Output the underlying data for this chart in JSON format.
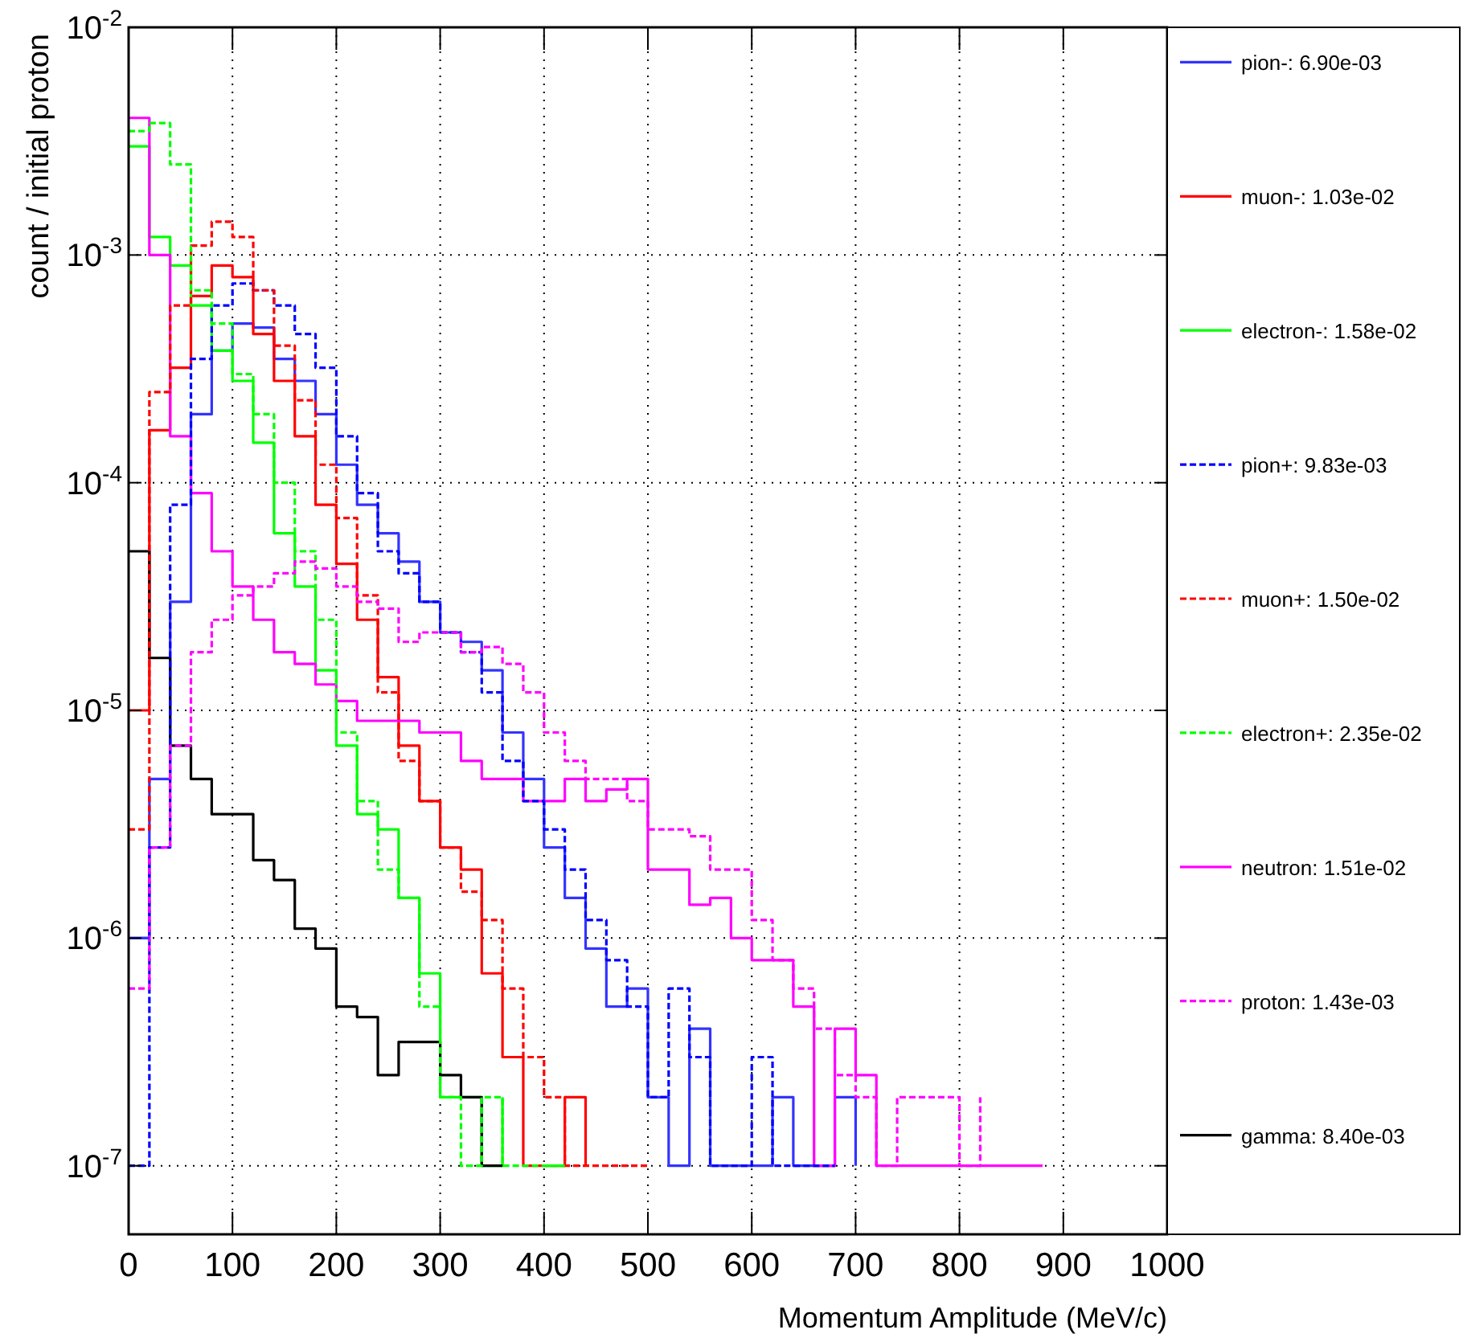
{
  "chart_data": {
    "type": "step",
    "xlabel": "Momentum Amplitude (MeV/c)",
    "ylabel": "count / initial proton",
    "x": [
      0,
      20,
      40,
      60,
      80,
      100,
      120,
      140,
      160,
      180,
      200,
      220,
      240,
      260,
      280,
      300,
      320,
      340,
      360,
      380,
      400,
      420,
      440,
      460,
      480,
      500,
      520,
      540,
      560,
      580,
      600,
      620,
      640,
      660,
      680,
      700,
      720,
      740,
      760,
      780,
      800,
      820,
      840,
      860,
      880
    ],
    "xlim": [
      0,
      1000
    ],
    "xticks": [
      0,
      100,
      200,
      300,
      400,
      500,
      600,
      700,
      800,
      900,
      1000
    ],
    "ylim": [
      5e-08,
      0.01
    ],
    "log": true,
    "yticks": [
      {
        "value": 1e-07,
        "label": "10$^{-7}$"
      },
      {
        "value": 1e-06,
        "label": "10$^{-6}$"
      },
      {
        "value": 1e-05,
        "label": "10$^{-5}$"
      },
      {
        "value": 0.0001,
        "label": "10$^{-4}$"
      },
      {
        "value": 0.001,
        "label": "10$^{-3}$"
      },
      {
        "value": 0.01,
        "label": "10$^{-2}$"
      }
    ],
    "grid": true,
    "legend": "right",
    "series": [
      {
        "name": "pion-: 6.90e-03",
        "color": "#3333ff",
        "line_style": "solid",
        "values": [
          1e-06,
          5e-06,
          3e-05,
          0.0002,
          0.00038,
          0.0005,
          0.00048,
          0.00035,
          0.00028,
          0.0002,
          0.00012,
          8e-05,
          6e-05,
          4.5e-05,
          3e-05,
          2.2e-05,
          2e-05,
          1.5e-05,
          8e-06,
          5e-06,
          2.5e-06,
          1.5e-06,
          9e-07,
          5e-07,
          6e-07,
          2e-07,
          1e-07,
          4e-07,
          1e-07,
          1e-07,
          1e-07,
          2e-07,
          1e-07,
          1e-07,
          2e-07,
          1e-07,
          null,
          null,
          null,
          null,
          null,
          null,
          null,
          null,
          null
        ]
      },
      {
        "name": "muon-: 1.03e-02",
        "color": "#ff0000",
        "line_style": "solid",
        "values": [
          1e-05,
          0.00017,
          0.00032,
          0.00066,
          0.0009,
          0.0008,
          0.00045,
          0.00028,
          0.00016,
          8e-05,
          4.4e-05,
          2.5e-05,
          1.4e-05,
          7e-06,
          4e-06,
          2.5e-06,
          2e-06,
          7e-07,
          3e-07,
          1e-07,
          1e-07,
          2e-07,
          1e-07,
          null,
          null,
          null,
          null,
          null,
          null,
          null,
          null,
          null,
          null,
          null,
          null,
          null,
          null,
          null,
          null,
          null,
          null,
          null,
          null,
          null,
          null
        ]
      },
      {
        "name": "electron-: 1.58e-02",
        "color": "#00ff00",
        "line_style": "solid",
        "values": [
          0.003,
          0.0012,
          0.0009,
          0.0006,
          0.00038,
          0.00028,
          0.00015,
          6e-05,
          3.5e-05,
          1.5e-05,
          7e-06,
          3.5e-06,
          3e-06,
          1.5e-06,
          7e-07,
          2e-07,
          2e-07,
          1e-07,
          2e-07,
          null,
          1e-07,
          1e-07,
          null,
          null,
          null,
          null,
          null,
          null,
          null,
          null,
          null,
          null,
          null,
          null,
          null,
          null,
          null,
          null,
          null,
          null,
          null,
          null,
          null,
          null,
          null
        ]
      },
      {
        "name": "pion+: 9.83e-03",
        "color": "#0000ff",
        "line_style": "dashed",
        "values": [
          1e-07,
          2.5e-06,
          8e-05,
          0.00035,
          0.0006,
          0.00075,
          0.0007,
          0.0006,
          0.00045,
          0.00032,
          0.00016,
          9e-05,
          5e-05,
          4e-05,
          3e-05,
          2.2e-05,
          1.8e-05,
          1.2e-05,
          6e-06,
          4e-06,
          3e-06,
          2e-06,
          1.2e-06,
          8e-07,
          5e-07,
          2e-07,
          6e-07,
          3e-07,
          1e-07,
          1e-07,
          3e-07,
          1e-07,
          1e-07,
          1e-07,
          1e-07,
          null,
          null,
          null,
          null,
          null,
          null,
          null,
          null,
          null,
          null
        ]
      },
      {
        "name": "muon+: 1.50e-02",
        "color": "#ff0000",
        "line_style": "dashed",
        "values": [
          3e-06,
          0.00025,
          0.0006,
          0.0011,
          0.0014,
          0.0012,
          0.0007,
          0.0004,
          0.00023,
          0.00012,
          7e-05,
          3.2e-05,
          1.2e-05,
          6e-06,
          4e-06,
          2.5e-06,
          1.6e-06,
          1.2e-06,
          6e-07,
          3e-07,
          2e-07,
          1e-07,
          1e-07,
          1e-07,
          1e-07,
          1e-07,
          null,
          null,
          null,
          null,
          null,
          null,
          null,
          null,
          null,
          null,
          null,
          null,
          null,
          null,
          null,
          null,
          null,
          null,
          null
        ]
      },
      {
        "name": "electron+: 2.35e-02",
        "color": "#00ff00",
        "line_style": "dashed",
        "values": [
          0.0035,
          0.0038,
          0.0025,
          0.0007,
          0.0005,
          0.0003,
          0.0002,
          0.0001,
          5e-05,
          2.5e-05,
          8e-06,
          4e-06,
          2e-06,
          1.5e-06,
          5e-07,
          2e-07,
          1e-07,
          2e-07,
          1e-07,
          1e-07,
          1e-07,
          1e-07,
          null,
          null,
          null,
          null,
          null,
          null,
          null,
          null,
          null,
          null,
          null,
          null,
          null,
          null,
          null,
          null,
          null,
          null,
          null,
          null,
          null,
          null,
          null
        ]
      },
      {
        "name": "neutron: 1.51e-02",
        "color": "#ff00ff",
        "line_style": "solid",
        "values": [
          0.004,
          0.001,
          0.00016,
          9e-05,
          5e-05,
          3.5e-05,
          2.5e-05,
          1.8e-05,
          1.6e-05,
          1.3e-05,
          1.1e-05,
          9e-06,
          9e-06,
          9e-06,
          8e-06,
          8e-06,
          6e-06,
          5e-06,
          5e-06,
          4e-06,
          4e-06,
          5e-06,
          4e-06,
          4.5e-06,
          5e-06,
          2e-06,
          2e-06,
          1.4e-06,
          1.5e-06,
          1e-06,
          8e-07,
          8e-07,
          5e-07,
          1e-07,
          4e-07,
          2.5e-07,
          1e-07,
          1e-07,
          1e-07,
          1e-07,
          1e-07,
          1e-07,
          1e-07,
          1e-07,
          1e-07
        ]
      },
      {
        "name": "proton: 1.43e-03",
        "color": "#ff00ff",
        "line_style": "dashed",
        "values": [
          6e-07,
          2.5e-06,
          7e-06,
          1.8e-05,
          2.5e-05,
          3.2e-05,
          3.5e-05,
          4e-05,
          4.5e-05,
          4.2e-05,
          3.5e-05,
          3e-05,
          2.8e-05,
          2e-05,
          2.2e-05,
          2.2e-05,
          1.8e-05,
          1.9e-05,
          1.6e-05,
          1.2e-05,
          8e-06,
          6e-06,
          5e-06,
          5e-06,
          4e-06,
          3e-06,
          3e-06,
          2.8e-06,
          2e-06,
          2e-06,
          1.2e-06,
          8e-07,
          6e-07,
          4e-07,
          2.5e-07,
          2e-07,
          1e-07,
          2e-07,
          2e-07,
          2e-07,
          1e-07,
          2e-07,
          null,
          null,
          null
        ]
      },
      {
        "name": "gamma: 8.40e-03",
        "color": "#000000",
        "line_style": "solid",
        "values": [
          5e-05,
          1.7e-05,
          7e-06,
          5e-06,
          3.5e-06,
          3.5e-06,
          2.2e-06,
          1.8e-06,
          1.1e-06,
          9e-07,
          5e-07,
          4.5e-07,
          2.5e-07,
          3.5e-07,
          3.5e-07,
          2.5e-07,
          2e-07,
          1e-07,
          1e-07,
          null,
          null,
          null,
          null,
          null,
          null,
          null,
          null,
          null,
          null,
          null,
          null,
          null,
          null,
          null,
          null,
          null,
          null,
          null,
          null,
          null,
          null,
          null,
          null,
          null,
          null
        ]
      }
    ]
  }
}
